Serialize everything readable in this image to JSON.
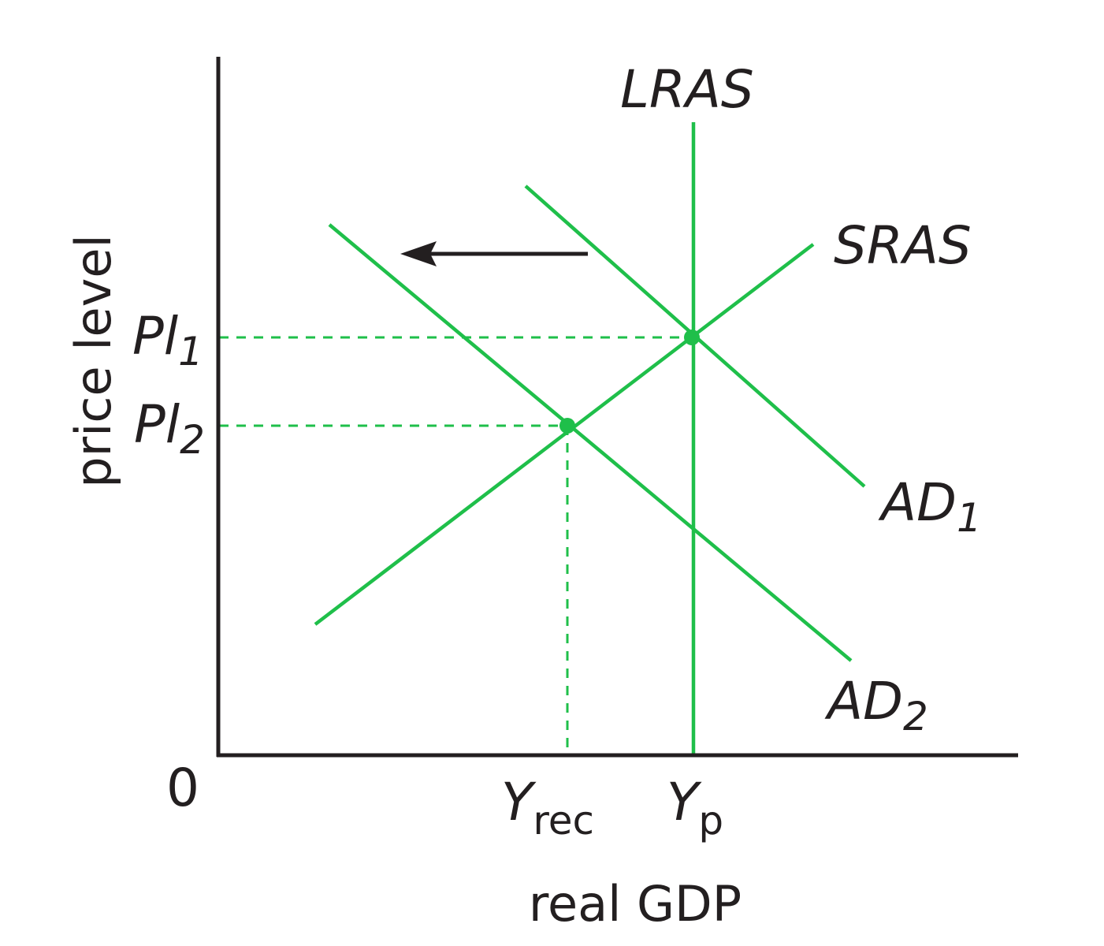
{
  "colors": {
    "curve": "#1fbf4a",
    "axis": "#231f20",
    "background": "#ffffff"
  },
  "axes": {
    "y_label": "price level",
    "x_label": "real GDP",
    "origin": "0"
  },
  "curves": {
    "lras": "LRAS",
    "sras": "SRAS",
    "ad1_main": "AD",
    "ad1_sub": "1",
    "ad2_main": "AD",
    "ad2_sub": "2"
  },
  "ticks": {
    "pl1_main": "Pl",
    "pl1_sub": "1",
    "pl2_main": "Pl",
    "pl2_sub": "2",
    "yrec_main": "Y",
    "yrec_sub": "rec",
    "yp_main": "Y",
    "yp_sub": "p"
  },
  "shift": {
    "direction": "left",
    "from": "AD1",
    "to": "AD2"
  },
  "equilibria": [
    {
      "price": "Pl1",
      "output": "Yp"
    },
    {
      "price": "Pl2",
      "output": "Yrec"
    }
  ]
}
